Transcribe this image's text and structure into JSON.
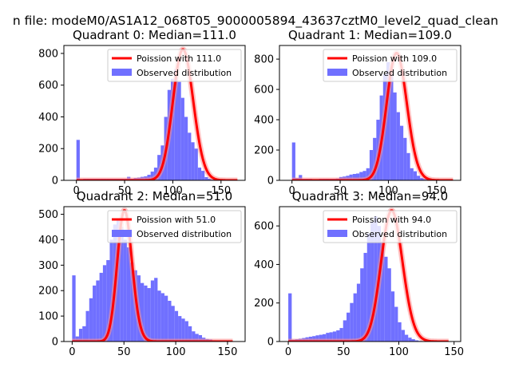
{
  "suptitle": "n file: modeM0/AS1A12_068T05_9000005894_43637cztM0_level2_quad_clean",
  "colors": {
    "hist": "#7070ff",
    "poisson": "#ff0000",
    "poisson_glow": "#ff9090",
    "axis": "#000000"
  },
  "chart_data": [
    {
      "type": "bar",
      "title": "Quadrant 0: Median=111.0",
      "median": 111.0,
      "xlim": [
        -13,
        175
      ],
      "ylim": [
        0,
        850
      ],
      "xticks": [
        0,
        50,
        100,
        150
      ],
      "yticks": [
        0,
        200,
        400,
        600,
        800
      ],
      "legend": {
        "placement": "top-right",
        "entries": [
          "Poission with 111.0",
          "Observed distribution"
        ]
      },
      "hist": {
        "x0": 0,
        "bin_width": 3.5,
        "values": [
          255,
          8,
          10,
          10,
          10,
          10,
          10,
          10,
          10,
          10,
          10,
          10,
          10,
          10,
          10,
          22,
          10,
          15,
          18,
          22,
          25,
          35,
          55,
          80,
          160,
          220,
          400,
          570,
          640,
          700,
          620,
          520,
          400,
          300,
          240,
          200,
          80,
          60,
          20,
          10,
          5,
          3,
          2,
          1,
          1,
          1,
          1,
          1
        ]
      },
      "poisson": {
        "mean": 111.0,
        "peak": 825,
        "x_range": [
          0,
          167
        ]
      }
    },
    {
      "type": "bar",
      "title": "Quadrant 1: Median=109.0",
      "median": 109.0,
      "xlim": [
        -13,
        175
      ],
      "ylim": [
        0,
        890
      ],
      "xticks": [
        0,
        50,
        100,
        150
      ],
      "yticks": [
        0,
        200,
        400,
        600,
        800
      ],
      "legend": {
        "placement": "top-right",
        "entries": [
          "Poission with 109.0",
          "Observed distribution"
        ]
      },
      "hist": {
        "x0": 0,
        "bin_width": 3.5,
        "values": [
          250,
          15,
          35,
          10,
          10,
          10,
          8,
          8,
          10,
          10,
          10,
          10,
          10,
          12,
          22,
          25,
          30,
          38,
          42,
          45,
          55,
          62,
          80,
          200,
          280,
          400,
          560,
          700,
          780,
          700,
          580,
          450,
          360,
          280,
          180,
          80,
          60,
          30,
          15,
          10,
          5,
          3,
          2,
          1,
          1,
          1,
          1,
          1
        ]
      },
      "poisson": {
        "mean": 109.0,
        "peak": 840,
        "x_range": [
          0,
          167
        ]
      }
    },
    {
      "type": "bar",
      "title": "Quadrant 2: Median=51.0",
      "median": 51.0,
      "xlim": [
        -8,
        167
      ],
      "ylim": [
        0,
        530
      ],
      "xticks": [
        0,
        50,
        100,
        150
      ],
      "yticks": [
        0,
        100,
        200,
        300,
        400,
        500
      ],
      "legend": {
        "placement": "top-right",
        "entries": [
          "Poission with 51.0",
          "Observed distribution"
        ]
      },
      "hist": {
        "x0": 0,
        "bin_width": 3.3,
        "values": [
          260,
          20,
          50,
          60,
          120,
          170,
          220,
          240,
          270,
          300,
          320,
          400,
          460,
          480,
          450,
          400,
          370,
          310,
          280,
          260,
          230,
          220,
          210,
          240,
          250,
          200,
          190,
          180,
          160,
          140,
          120,
          100,
          90,
          80,
          60,
          40,
          30,
          25,
          15,
          10,
          8,
          5,
          3,
          2,
          1,
          1,
          1,
          1
        ]
      },
      "poisson": {
        "mean": 51.0,
        "peak": 515,
        "x_range": [
          0,
          155
        ]
      }
    },
    {
      "type": "bar",
      "title": "Quadrant 3: Median=94.0",
      "median": 94.0,
      "xlim": [
        -8,
        156
      ],
      "ylim": [
        0,
        700
      ],
      "xticks": [
        0,
        50,
        100,
        150
      ],
      "yticks": [
        0,
        200,
        400,
        600
      ],
      "legend": {
        "placement": "top-right",
        "entries": [
          "Poission with 94.0",
          "Observed distribution"
        ]
      },
      "hist": {
        "x0": 0,
        "bin_width": 3.1,
        "values": [
          250,
          10,
          12,
          15,
          18,
          22,
          25,
          28,
          32,
          35,
          38,
          45,
          48,
          52,
          58,
          70,
          110,
          150,
          200,
          250,
          300,
          380,
          460,
          560,
          620,
          650,
          600,
          520,
          440,
          380,
          260,
          180,
          100,
          60,
          35,
          20,
          12,
          6,
          3,
          2,
          1,
          1,
          1,
          1,
          1,
          1,
          1,
          1
        ]
      },
      "poisson": {
        "mean": 94.0,
        "peak": 680,
        "x_range": [
          0,
          145
        ]
      }
    }
  ]
}
